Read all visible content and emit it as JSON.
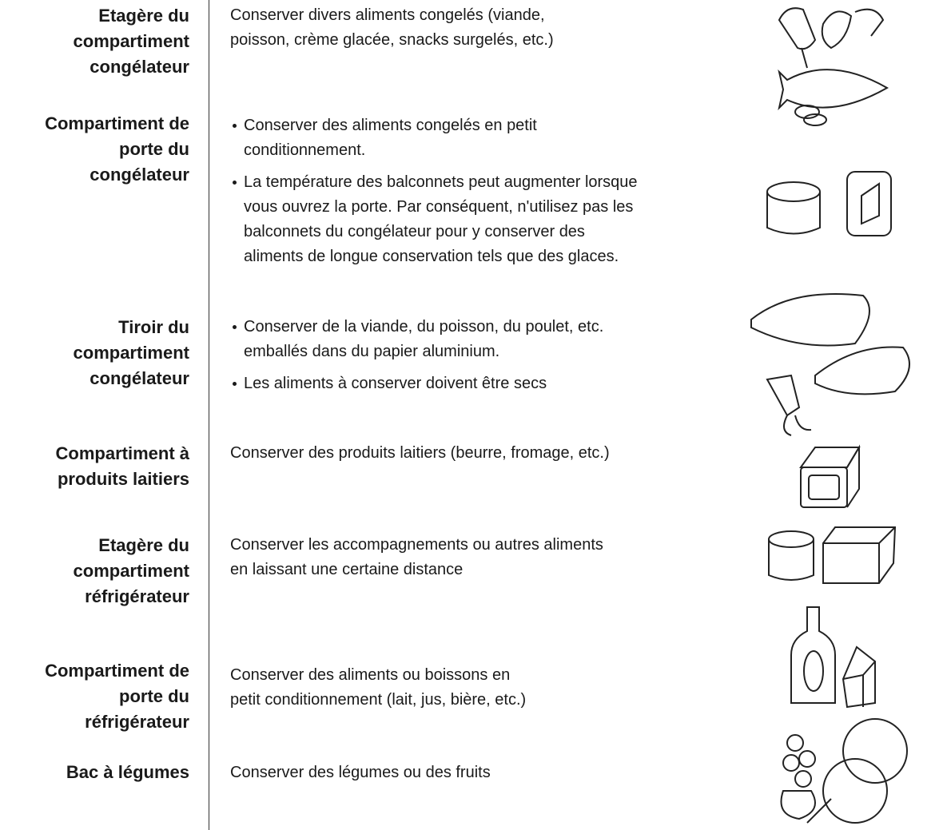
{
  "rows": [
    {
      "label": [
        "Etagère du",
        "compartiment",
        "congélateur"
      ],
      "lines": [
        "Conserver divers aliments congelés (viande,",
        "poisson, crème glacée, snacks surgelés, etc.)"
      ]
    },
    {
      "label": [
        "Compartiment de",
        "porte du",
        "congélateur"
      ],
      "bullets": [
        [
          "Conserver des aliments congelés en petit",
          "conditionnement."
        ],
        [
          "La température des balconnets peut augmenter lorsque",
          "vous ouvrez la porte. Par conséquent, n'utilisez pas les",
          "balconnets du congélateur pour y conserver des",
          "aliments de longue conservation tels que des glaces."
        ]
      ]
    },
    {
      "label": [
        "Tiroir du",
        "compartiment",
        "congélateur"
      ],
      "bullets": [
        [
          "Conserver de la viande, du poisson, du poulet, etc.",
          "emballés dans du papier aluminium."
        ],
        [
          "Les aliments à conserver doivent être secs"
        ]
      ]
    },
    {
      "label": [
        "Compartiment à",
        "produits laitiers"
      ],
      "lines": [
        "Conserver des produits laitiers (beurre, fromage, etc.)"
      ]
    },
    {
      "label": [
        "Etagère du",
        "compartiment",
        "réfrigérateur"
      ],
      "lines": [
        "Conserver les accompagnements ou autres aliments",
        "en laissant une certaine distance"
      ]
    },
    {
      "label": [
        "Compartiment de",
        "porte du",
        "réfrigérateur"
      ],
      "lines": [
        "Conserver des aliments ou boissons en",
        "petit conditionnement (lait, jus, bière, etc.)"
      ]
    },
    {
      "label": [
        "Bac à légumes"
      ],
      "lines": [
        "Conserver des légumes ou des fruits"
      ]
    }
  ]
}
